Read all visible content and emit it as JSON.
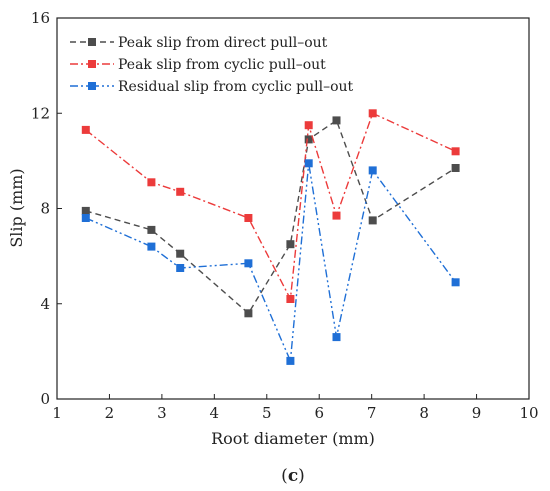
{
  "chart_data": {
    "type": "line",
    "xlabel": "Root diameter (mm)",
    "ylabel": "Slip (mm)",
    "panel_label": "c",
    "xlim": [
      1,
      10
    ],
    "ylim": [
      0,
      16
    ],
    "xticks": [
      1,
      2,
      3,
      4,
      5,
      6,
      7,
      8,
      9,
      10
    ],
    "yticks": [
      0,
      4,
      8,
      12,
      16
    ],
    "grid": false,
    "legend": "top-left",
    "x": [
      1.55,
      2.8,
      3.35,
      4.65,
      5.45,
      5.8,
      6.33,
      7.02,
      8.6
    ],
    "series": [
      {
        "name": "Peak slip from direct pull–out",
        "color": "#4d4d4d",
        "dash": "dash",
        "values": [
          7.9,
          7.1,
          6.1,
          3.6,
          6.5,
          10.9,
          11.7,
          7.5,
          9.7
        ]
      },
      {
        "name": "Peak slip from cyclic pull–out",
        "color": "#ec3b3b",
        "dash": "dashdot",
        "values": [
          11.3,
          9.1,
          8.7,
          7.6,
          4.2,
          11.5,
          7.7,
          12.0,
          10.4
        ]
      },
      {
        "name": "Residual slip from cyclic pull–out",
        "color": "#1f6fd6",
        "dash": "dashdotdot",
        "values": [
          7.6,
          6.4,
          5.5,
          5.7,
          1.6,
          9.9,
          2.6,
          9.6,
          4.9
        ]
      }
    ]
  }
}
